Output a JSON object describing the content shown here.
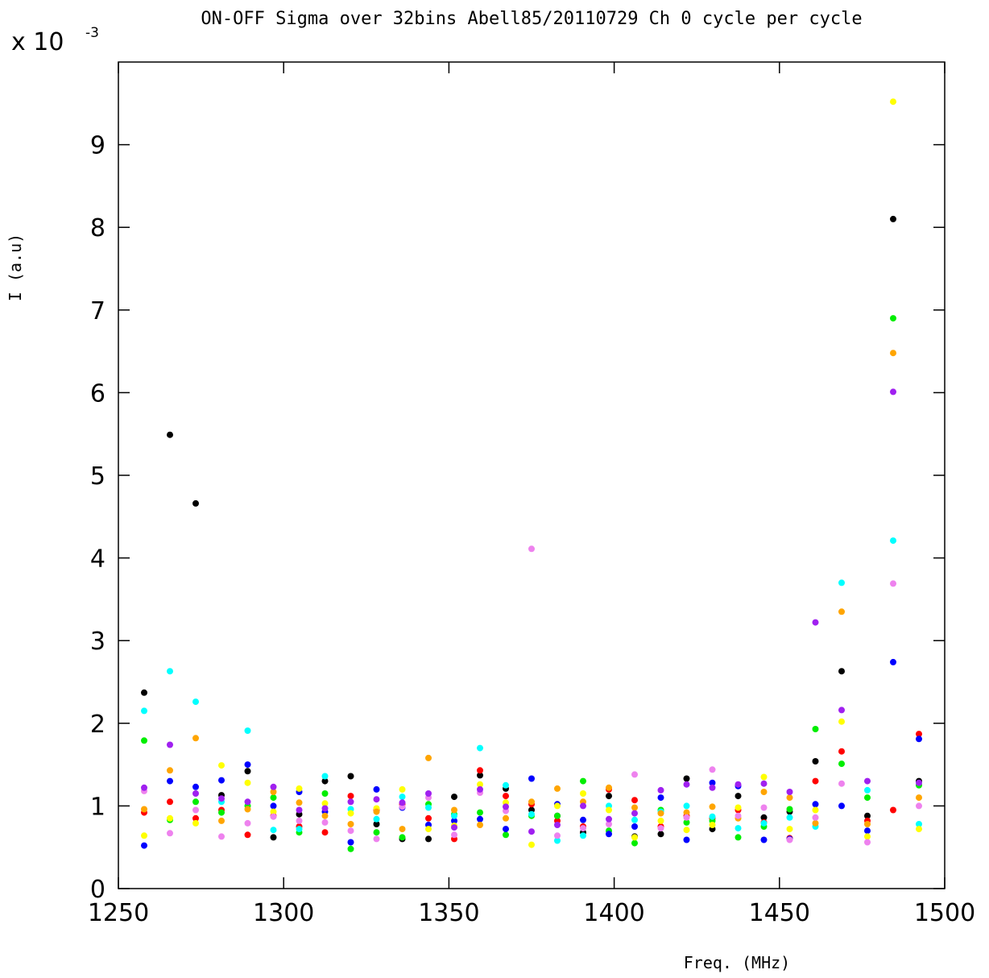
{
  "chart_data": {
    "type": "scatter",
    "title": "ON-OFF Sigma over 32bins Abell85/20110729 Ch 0 cycle per cycle",
    "xlabel": "Freq. (MHz)",
    "ylabel": "I (a.u)",
    "y_multiplier": {
      "base": "x 10",
      "exponent": "-3"
    },
    "xlim": [
      1250,
      1500
    ],
    "ylim": [
      0,
      10
    ],
    "xticks": [
      1250,
      1300,
      1350,
      1400,
      1450,
      1500
    ],
    "yticks": [
      0,
      1,
      2,
      3,
      4,
      5,
      6,
      7,
      8,
      9
    ],
    "grid": false,
    "legend": "none",
    "colors": {
      "black": "#000000",
      "red": "#ff0000",
      "green": "#00ee00",
      "blue": "#0000ff",
      "cyan": "#00ffff",
      "yellow": "#ffff00",
      "orange": "#ffa500",
      "violet": "#ee82ee",
      "purple": "#a020f0"
    },
    "points": {
      "x": [
        1257.8,
        1265.6,
        1273.4,
        1281.2,
        1289.1,
        1296.9,
        1304.7,
        1312.5,
        1320.3,
        1328.1,
        1335.9,
        1343.8,
        1351.6,
        1359.4,
        1367.2,
        1375.0,
        1382.8,
        1390.6,
        1398.4,
        1406.2,
        1414.1,
        1421.9,
        1429.7,
        1437.5,
        1445.3,
        1453.1,
        1460.9,
        1468.8,
        1476.6,
        1484.4,
        1492.2
      ],
      "black": [
        2.37,
        5.49,
        4.66,
        1.13,
        1.42,
        0.62,
        0.9,
        1.3,
        1.36,
        0.78,
        0.6,
        0.6,
        1.11,
        1.37,
        1.21,
        0.95,
        0.88,
        0.68,
        1.12,
        0.63,
        0.66,
        1.33,
        0.72,
        1.12,
        0.86,
        0.93,
        1.54,
        2.63,
        0.88,
        8.1,
        1.3
      ],
      "red": [
        0.92,
        1.05,
        0.85,
        0.95,
        0.65,
        0.88,
        0.75,
        0.68,
        1.12,
        0.95,
        1.02,
        0.85,
        0.6,
        1.43,
        1.12,
        1.02,
        0.82,
        0.75,
        1.2,
        1.07,
        0.75,
        0.88,
        0.85,
        0.95,
        0.8,
        0.61,
        1.3,
        1.66,
        0.82,
        0.95,
        1.87
      ],
      "green": [
        1.79,
        0.83,
        1.05,
        0.92,
        1.0,
        1.1,
        0.68,
        1.15,
        0.48,
        0.68,
        0.62,
        1.02,
        0.9,
        0.92,
        0.65,
        0.88,
        0.88,
        1.3,
        0.7,
        0.55,
        0.95,
        0.8,
        0.82,
        0.62,
        0.75,
        0.96,
        1.93,
        1.51,
        1.1,
        6.9,
        1.25
      ],
      "blue": [
        0.52,
        1.3,
        1.23,
        1.31,
        1.5,
        1.0,
        1.17,
        0.93,
        0.56,
        1.2,
        0.98,
        0.77,
        0.82,
        0.84,
        0.72,
        1.33,
        1.02,
        0.83,
        0.66,
        0.75,
        1.1,
        0.59,
        1.28,
        1.24,
        0.59,
        0.6,
        1.02,
        1.0,
        0.7,
        2.74,
        1.81
      ],
      "cyan": [
        2.15,
        2.63,
        2.26,
        1.05,
        1.91,
        0.71,
        0.72,
        1.36,
        0.96,
        0.84,
        1.11,
        0.98,
        0.88,
        1.7,
        1.25,
        0.9,
        0.58,
        0.64,
        1.0,
        0.83,
        0.93,
        1.0,
        0.87,
        0.73,
        0.79,
        0.86,
        0.75,
        3.7,
        1.19,
        4.21,
        0.78
      ],
      "yellow": [
        0.64,
        0.85,
        0.79,
        1.49,
        1.28,
        0.93,
        1.21,
        1.03,
        0.91,
        0.97,
        1.2,
        0.72,
        0.76,
        1.26,
        1.04,
        0.53,
        1.0,
        1.15,
        0.95,
        0.62,
        0.82,
        0.71,
        0.77,
        0.98,
        1.35,
        0.72,
        0.95,
        2.02,
        0.63,
        9.52,
        0.72
      ],
      "orange": [
        0.96,
        1.43,
        1.82,
        0.82,
        0.96,
        1.17,
        1.04,
        0.88,
        0.78,
        0.93,
        0.72,
        1.58,
        0.95,
        0.77,
        0.85,
        1.05,
        1.21,
        1.05,
        1.22,
        0.98,
        0.91,
        0.92,
        0.99,
        0.85,
        1.17,
        1.1,
        0.79,
        3.35,
        0.78,
        6.48,
        1.1
      ],
      "violet": [
        1.18,
        0.67,
        0.95,
        0.63,
        0.79,
        0.87,
        0.82,
        0.8,
        0.7,
        0.6,
        0.99,
        1.1,
        0.65,
        1.16,
        0.94,
        4.11,
        0.64,
        0.73,
        0.78,
        1.38,
        0.73,
        0.86,
        1.44,
        0.88,
        0.98,
        0.59,
        0.86,
        1.27,
        0.56,
        3.69,
        1.0
      ],
      "purple": [
        1.22,
        1.74,
        1.15,
        1.09,
        1.05,
        1.23,
        0.95,
        0.97,
        1.05,
        1.08,
        1.04,
        1.15,
        0.74,
        1.2,
        0.99,
        0.69,
        0.77,
        1.0,
        0.84,
        0.91,
        1.19,
        1.26,
        1.22,
        1.26,
        1.27,
        1.17,
        3.22,
        2.16,
        1.3,
        6.01,
        1.28
      ]
    }
  }
}
